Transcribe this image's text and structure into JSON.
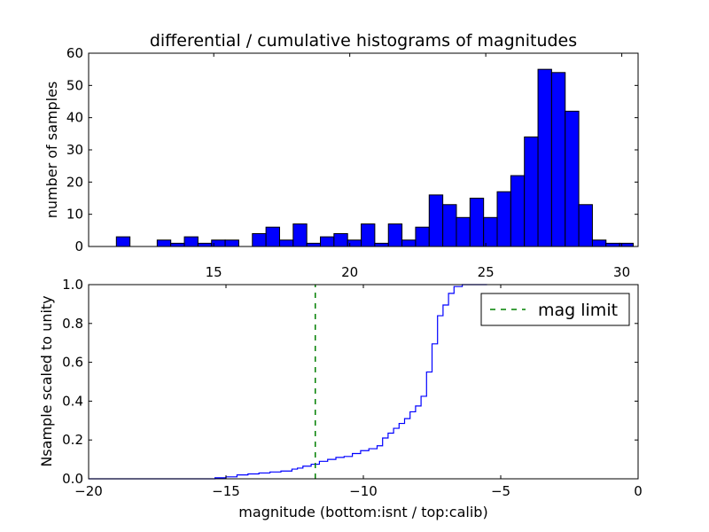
{
  "colors": {
    "bar_fill": "#0000ff",
    "bar_edge": "#000000",
    "cumulative_line": "#0000ff",
    "mag_limit": "#008000",
    "axes": "#000000",
    "background": "#ffffff"
  },
  "chart_data": [
    {
      "type": "bar",
      "subtype": "histogram",
      "title": "differential / cumulative histograms of magnitudes",
      "xlabel": "",
      "ylabel": "number of samples",
      "xlim": [
        10.4,
        30.6
      ],
      "ylim": [
        0,
        60
      ],
      "x_ticks": [
        15,
        20,
        25,
        30
      ],
      "x_tick_labels": [
        "15",
        "20",
        "25",
        "30"
      ],
      "x_ticks_position": "top",
      "y_ticks": [
        0,
        10,
        20,
        30,
        40,
        50,
        60
      ],
      "y_tick_labels": [
        "0",
        "10",
        "20",
        "30",
        "40",
        "50",
        "60"
      ],
      "grid": false,
      "bin_edges": [
        10.42,
        10.92,
        11.42,
        11.92,
        12.42,
        12.92,
        13.42,
        13.92,
        14.42,
        14.92,
        15.42,
        15.92,
        16.42,
        16.92,
        17.42,
        17.92,
        18.42,
        18.92,
        19.42,
        19.92,
        20.42,
        20.92,
        21.42,
        21.92,
        22.42,
        22.92,
        23.42,
        23.92,
        24.42,
        24.92,
        25.42,
        25.92,
        26.42,
        26.92,
        27.42,
        27.92,
        28.42,
        28.92,
        29.42,
        29.92,
        30.42
      ],
      "values": [
        0,
        0,
        3,
        0,
        0,
        2,
        1,
        3,
        1,
        2,
        2,
        0,
        4,
        6,
        2,
        7,
        1,
        3,
        4,
        2,
        7,
        1,
        7,
        2,
        6,
        16,
        13,
        9,
        15,
        9,
        17,
        22,
        34,
        55,
        54,
        42,
        13,
        2,
        1,
        1
      ]
    },
    {
      "type": "line",
      "subtype": "step-cumulative",
      "title": "",
      "xlabel": "magnitude (bottom:isnt / top:calib)",
      "ylabel": "Nsample scaled to unity",
      "xlim": [
        -20,
        0
      ],
      "ylim": [
        0,
        1.0
      ],
      "x_ticks": [
        -20,
        -15,
        -10,
        -5,
        0
      ],
      "x_tick_labels": [
        "−20",
        "−15",
        "−10",
        "−5",
        "0"
      ],
      "y_ticks": [
        0,
        0.2,
        0.4,
        0.6,
        0.8,
        1.0
      ],
      "y_tick_labels": [
        "0.0",
        "0.2",
        "0.4",
        "0.6",
        "0.8",
        "1.0"
      ],
      "grid": false,
      "legend_position": "top-right",
      "series": [
        {
          "name": "",
          "style": "step",
          "x": [
            -20,
            -16.0,
            -15.4,
            -15.0,
            -14.6,
            -14.2,
            -13.8,
            -13.4,
            -13.0,
            -12.6,
            -12.4,
            -12.2,
            -11.9,
            -11.6,
            -11.3,
            -11.0,
            -10.7,
            -10.4,
            -10.1,
            -9.8,
            -9.5,
            -9.3,
            -9.1,
            -8.9,
            -8.7,
            -8.5,
            -8.3,
            -8.1,
            -7.9,
            -7.7,
            -7.5,
            -7.3,
            -7.1,
            -6.9,
            -6.7,
            -6.4,
            -6.0,
            -5.5
          ],
          "y": [
            0.0,
            0.0,
            0.005,
            0.01,
            0.02,
            0.025,
            0.03,
            0.035,
            0.04,
            0.05,
            0.055,
            0.065,
            0.075,
            0.09,
            0.1,
            0.11,
            0.115,
            0.13,
            0.145,
            0.155,
            0.17,
            0.21,
            0.235,
            0.26,
            0.285,
            0.31,
            0.345,
            0.375,
            0.425,
            0.55,
            0.695,
            0.84,
            0.895,
            0.955,
            0.99,
            1.0,
            1.0,
            1.0
          ]
        },
        {
          "name": "mag limit",
          "style": "dashed-vertical",
          "x": [
            -11.75,
            -11.75
          ],
          "y": [
            0,
            1.0
          ]
        }
      ]
    }
  ]
}
